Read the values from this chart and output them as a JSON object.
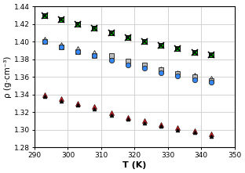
{
  "T": [
    293,
    298,
    303,
    308,
    313,
    318,
    323,
    328,
    333,
    338,
    343
  ],
  "series": [
    {
      "label": "green_square",
      "values": [
        1.43,
        1.425,
        1.42,
        1.415,
        1.41,
        1.405,
        1.4,
        1.396,
        1.392,
        1.388,
        1.385
      ],
      "marker": "s",
      "mfc": "#00cc00",
      "mec": "#000000",
      "ms": 4.5,
      "mew": 0.7,
      "zorder": 3
    },
    {
      "label": "black_x",
      "values": [
        1.43,
        1.425,
        1.42,
        1.415,
        1.41,
        1.405,
        1.4,
        1.396,
        1.392,
        1.388,
        1.385
      ],
      "marker": "x",
      "mfc": "#000000",
      "mec": "#000000",
      "ms": 5.5,
      "mew": 1.2,
      "zorder": 4
    },
    {
      "label": "gray_square",
      "values": [
        1.4,
        1.394,
        1.389,
        1.384,
        1.384,
        1.378,
        1.374,
        1.368,
        1.364,
        1.36,
        1.356
      ],
      "marker": "s",
      "mfc": "#bbbbbb",
      "mec": "#333333",
      "ms": 4.5,
      "mew": 0.7,
      "zorder": 3
    },
    {
      "label": "blue_circle",
      "values": [
        1.4,
        1.394,
        1.389,
        1.384,
        1.379,
        1.374,
        1.37,
        1.365,
        1.361,
        1.357,
        1.354
      ],
      "marker": "o",
      "mfc": "#3388ff",
      "mec": "#333333",
      "ms": 4.5,
      "mew": 0.7,
      "zorder": 4
    },
    {
      "label": "white_triangle",
      "values": [
        1.403,
        1.397,
        1.392,
        1.388,
        1.383,
        1.378,
        1.374,
        1.369,
        1.365,
        1.362,
        1.358
      ],
      "marker": "^",
      "mfc": "#ffffff",
      "mec": "#333333",
      "ms": 5.0,
      "mew": 0.7,
      "zorder": 2
    },
    {
      "label": "red_triangle",
      "values": [
        1.34,
        1.335,
        1.33,
        1.326,
        1.319,
        1.314,
        1.31,
        1.306,
        1.302,
        1.299,
        1.295
      ],
      "marker": "^",
      "mfc": "#dd2222",
      "mec": "#330000",
      "ms": 5.0,
      "mew": 0.5,
      "zorder": 3
    },
    {
      "label": "black_triangle_small",
      "values": [
        1.338,
        1.333,
        1.328,
        1.324,
        1.317,
        1.312,
        1.308,
        1.304,
        1.3,
        1.297,
        1.293
      ],
      "marker": "^",
      "mfc": "#000000",
      "mec": "#000000",
      "ms": 3.5,
      "mew": 0.5,
      "zorder": 4
    }
  ],
  "xlabel": "T (K)",
  "ylabel": "ρ (g·cm⁻³)",
  "xlim": [
    290,
    350
  ],
  "ylim": [
    1.28,
    1.44
  ],
  "xticks": [
    290,
    300,
    310,
    320,
    330,
    340,
    350
  ],
  "yticks": [
    1.28,
    1.3,
    1.32,
    1.34,
    1.36,
    1.38,
    1.4,
    1.42,
    1.44
  ],
  "bg_color": "#ffffff",
  "grid_color": "#cccccc",
  "figsize": [
    3.12,
    2.21
  ],
  "dpi": 100
}
